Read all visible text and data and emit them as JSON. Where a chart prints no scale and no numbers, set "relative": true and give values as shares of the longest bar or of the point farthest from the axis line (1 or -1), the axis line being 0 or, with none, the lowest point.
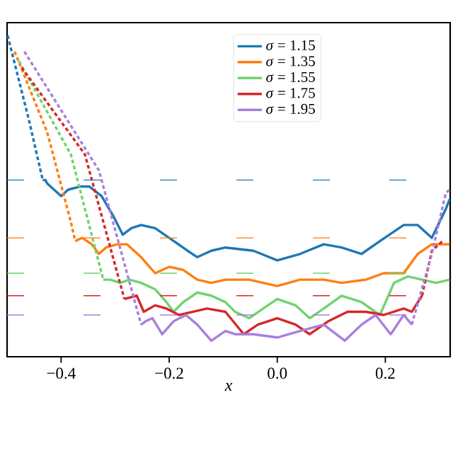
{
  "chart_data": {
    "type": "line",
    "relative": true,
    "xlabel": "x",
    "xlim": [
      -0.5,
      0.32
    ],
    "xticks": [
      {
        "value": -0.4,
        "label": "−0.4"
      },
      {
        "value": -0.2,
        "label": "−0.2"
      },
      {
        "value": 0.0,
        "label": "0.0"
      },
      {
        "value": 0.2,
        "label": "0.2"
      }
    ],
    "legend": "top",
    "grid": false,
    "series": [
      {
        "name": "*σ* = 1.15",
        "color": "#1f77b4",
        "line_style": "solid",
        "x": [
          -0.434,
          -0.429,
          -0.426,
          -0.413,
          -0.4,
          -0.387,
          -0.364,
          -0.348,
          -0.325,
          -0.304,
          -0.286,
          -0.27,
          -0.252,
          -0.226,
          -0.2,
          -0.166,
          -0.148,
          -0.122,
          -0.096,
          -0.044,
          0,
          0.042,
          0.086,
          0.119,
          0.156,
          0.19,
          0.234,
          0.26,
          0.286,
          0.312,
          0.319
        ],
        "values": [
          0.55,
          0.55,
          0.54,
          0.52,
          0.5,
          0.52,
          0.53,
          0.53,
          0.5,
          0.44,
          0.38,
          0.4,
          0.41,
          0.4,
          0.37,
          0.33,
          0.31,
          0.33,
          0.34,
          0.33,
          0.3,
          0.32,
          0.35,
          0.34,
          0.32,
          0.36,
          0.41,
          0.41,
          0.37,
          0.46,
          0.49
        ]
      },
      {
        "name": "*σ* = 1.35",
        "color": "#ff7f0e",
        "line_style": "solid",
        "x": [
          -0.374,
          -0.361,
          -0.343,
          -0.33,
          -0.317,
          -0.296,
          -0.278,
          -0.252,
          -0.226,
          -0.2,
          -0.174,
          -0.148,
          -0.122,
          -0.096,
          -0.052,
          0,
          0.042,
          0.086,
          0.119,
          0.164,
          0.197,
          0.234,
          0.26,
          0.286,
          0.312,
          0.319
        ],
        "values": [
          0.36,
          0.37,
          0.35,
          0.32,
          0.34,
          0.35,
          0.35,
          0.31,
          0.26,
          0.28,
          0.27,
          0.24,
          0.23,
          0.24,
          0.24,
          0.22,
          0.24,
          0.24,
          0.23,
          0.24,
          0.26,
          0.26,
          0.32,
          0.35,
          0.35,
          0.35
        ]
      },
      {
        "name": "*σ* = 1.55",
        "color": "#6fd36f",
        "line_style": "solid",
        "x": [
          -0.322,
          -0.309,
          -0.291,
          -0.273,
          -0.252,
          -0.226,
          -0.205,
          -0.192,
          -0.174,
          -0.148,
          -0.122,
          -0.096,
          -0.078,
          -0.052,
          -0.026,
          0,
          0.034,
          0.06,
          0.086,
          0.119,
          0.156,
          0.19,
          0.216,
          0.242,
          0.268,
          0.294,
          0.319
        ],
        "values": [
          0.24,
          0.24,
          0.23,
          0.24,
          0.23,
          0.21,
          0.17,
          0.14,
          0.17,
          0.2,
          0.19,
          0.17,
          0.14,
          0.12,
          0.15,
          0.18,
          0.16,
          0.12,
          0.15,
          0.19,
          0.17,
          0.13,
          0.23,
          0.25,
          0.24,
          0.23,
          0.24
        ]
      },
      {
        "name": "*σ* = 1.75",
        "color": "#d62728",
        "line_style": "solid",
        "x": [
          -0.283,
          -0.26,
          -0.247,
          -0.226,
          -0.205,
          -0.182,
          -0.156,
          -0.13,
          -0.096,
          -0.062,
          -0.036,
          0,
          0.034,
          0.06,
          0.094,
          0.13,
          0.164,
          0.197,
          0.234,
          0.249,
          0.268
        ],
        "values": [
          0.18,
          0.19,
          0.14,
          0.16,
          0.15,
          0.13,
          0.14,
          0.15,
          0.14,
          0.07,
          0.1,
          0.12,
          0.1,
          0.07,
          0.11,
          0.14,
          0.14,
          0.13,
          0.15,
          0.14,
          0.19
        ]
      },
      {
        "name": "*σ* = 1.95",
        "color": "#a97fdc",
        "line_style": "solid",
        "x": [
          -0.252,
          -0.244,
          -0.231,
          -0.213,
          -0.192,
          -0.169,
          -0.148,
          -0.122,
          -0.096,
          -0.078,
          -0.044,
          0,
          0.042,
          0.086,
          0.125,
          0.156,
          0.182,
          0.21,
          0.234,
          0.249
        ],
        "values": [
          0.1,
          0.11,
          0.12,
          0.07,
          0.11,
          0.13,
          0.1,
          0.05,
          0.08,
          0.07,
          0.07,
          0.06,
          0.08,
          0.1,
          0.05,
          0.1,
          0.13,
          0.07,
          0.13,
          0.1
        ]
      },
      {
        "color": "#1f77b4",
        "line_style": "dashed",
        "x": [
          -0.499,
          -0.46,
          -0.434
        ],
        "values": [
          1.0,
          0.74,
          0.55
        ]
      },
      {
        "color": "#ff7f0e",
        "line_style": "dashed",
        "x": [
          -0.486,
          -0.426,
          -0.382,
          -0.374
        ],
        "values": [
          0.95,
          0.7,
          0.42,
          0.36
        ]
      },
      {
        "color": "#6fd36f",
        "line_style": "dashed",
        "x": [
          -0.478,
          -0.382,
          -0.322
        ],
        "values": [
          0.92,
          0.63,
          0.24
        ]
      },
      {
        "color": "#d62728",
        "line_style": "dashed",
        "x": [
          -0.473,
          -0.356,
          -0.283
        ],
        "values": [
          0.9,
          0.63,
          0.18
        ]
      },
      {
        "color": "#a97fdc",
        "line_style": "dashed",
        "x": [
          -0.468,
          -0.33,
          -0.252
        ],
        "values": [
          0.95,
          0.58,
          0.1
        ]
      },
      {
        "color": "#d62728",
        "line_style": "dashed",
        "x": [
          0.268,
          0.286,
          0.306
        ],
        "values": [
          0.19,
          0.33,
          0.36
        ]
      },
      {
        "color": "#a97fdc",
        "line_style": "dashed",
        "x": [
          0.249,
          0.286,
          0.312,
          0.319
        ],
        "values": [
          0.1,
          0.32,
          0.51,
          0.52
        ]
      }
    ],
    "ref_lines": [
      {
        "axis": "y",
        "value": 0.55,
        "color": "#1f77b4",
        "line_style": "dashed"
      },
      {
        "axis": "y",
        "value": 0.37,
        "color": "#ff7f0e",
        "line_style": "dashed"
      },
      {
        "axis": "y",
        "value": 0.26,
        "color": "#6fd36f",
        "line_style": "dashed"
      },
      {
        "axis": "y",
        "value": 0.19,
        "color": "#d62728",
        "line_style": "dashed"
      },
      {
        "axis": "y",
        "value": 0.13,
        "color": "#a97fdc",
        "line_style": "dashed"
      }
    ]
  }
}
